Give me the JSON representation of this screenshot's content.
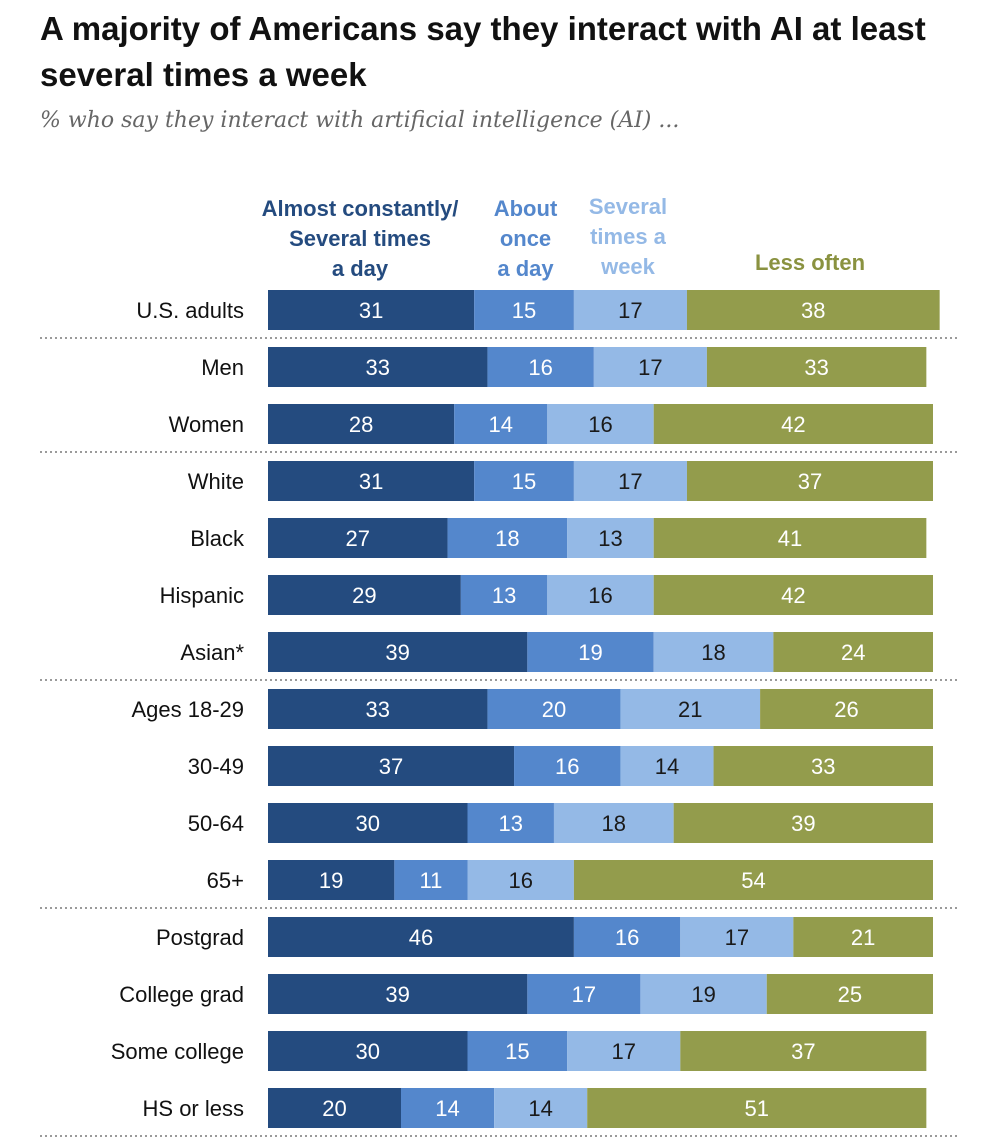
{
  "chart_data": {
    "type": "stacked-bar-horizontal",
    "title": "A majority of Americans say they interact with AI at least several times a week",
    "subtitle": "% who say they interact with artificial intelligence (AI) ...",
    "series": [
      {
        "name": "Almost constantly/ Several times a day",
        "color": "#244b7f"
      },
      {
        "name": "About once a day",
        "color": "#5487cc"
      },
      {
        "name": "Several times a week",
        "color": "#94b9e6"
      },
      {
        "name": "Less often",
        "color": "#939c4c"
      }
    ],
    "legend_lines": [
      [
        "Almost constantly/",
        "Several times",
        "a day"
      ],
      [
        "About",
        "once",
        "a day"
      ],
      [
        "Several",
        "times a",
        "week"
      ],
      [
        "Less often"
      ]
    ],
    "legend_text_colors": [
      "#244b7f",
      "#5487cc",
      "#94b9e6",
      "#8a9240"
    ],
    "rows": [
      {
        "label": "U.S. adults",
        "values": [
          31,
          15,
          17,
          38
        ]
      },
      {
        "label": "Men",
        "values": [
          33,
          16,
          17,
          33
        ]
      },
      {
        "label": "Women",
        "values": [
          28,
          14,
          16,
          42
        ]
      },
      {
        "label": "White",
        "values": [
          31,
          15,
          17,
          37
        ]
      },
      {
        "label": "Black",
        "values": [
          27,
          18,
          13,
          41
        ]
      },
      {
        "label": "Hispanic",
        "values": [
          29,
          13,
          16,
          42
        ]
      },
      {
        "label": "Asian*",
        "values": [
          39,
          19,
          18,
          24
        ]
      },
      {
        "label": "Ages 18-29",
        "values": [
          33,
          20,
          21,
          26
        ]
      },
      {
        "label": "30-49",
        "values": [
          37,
          16,
          14,
          33
        ]
      },
      {
        "label": "50-64",
        "values": [
          30,
          13,
          18,
          39
        ]
      },
      {
        "label": "65+",
        "values": [
          19,
          11,
          16,
          54
        ]
      },
      {
        "label": "Postgrad",
        "values": [
          46,
          16,
          17,
          21
        ]
      },
      {
        "label": "College grad",
        "values": [
          39,
          17,
          19,
          25
        ]
      },
      {
        "label": "Some college",
        "values": [
          30,
          15,
          17,
          37
        ]
      },
      {
        "label": "HS or less",
        "values": [
          20,
          14,
          14,
          51
        ]
      }
    ],
    "group_separators_after": [
      0,
      2,
      6,
      10,
      14
    ]
  }
}
